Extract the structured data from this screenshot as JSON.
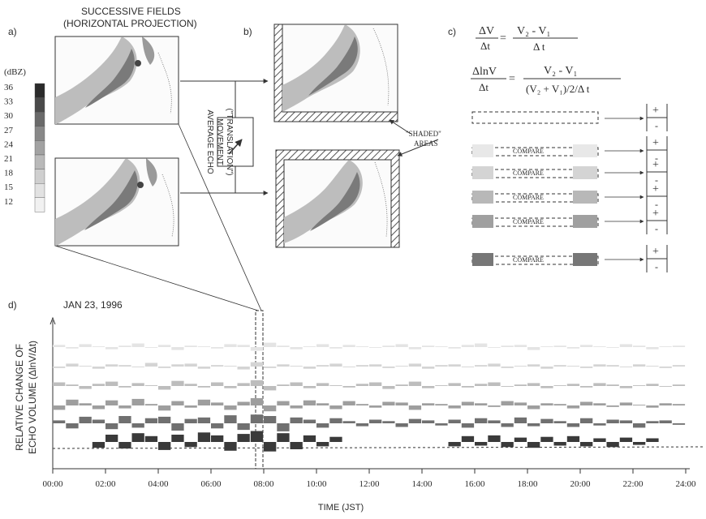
{
  "panel_a": {
    "label": "a)",
    "title_line1": "SUCCESSIVE FIELDS",
    "title_line2": "(HORIZONTAL PROJECTION)"
  },
  "colorbar": {
    "unit": "(dBZ)",
    "ticks": [
      "36",
      "33",
      "30",
      "27",
      "24",
      "21",
      "18",
      "15",
      "12"
    ],
    "colors": [
      "#2b2b2b",
      "#4a4a4a",
      "#6a6a6a",
      "#888888",
      "#a2a2a2",
      "#b9b9b9",
      "#cfcfcf",
      "#e2e2e2",
      "#f1f1f1"
    ]
  },
  "translation": {
    "line1": "AVERAGE ECHO",
    "line2": "MOVEMENT",
    "line3": "(\"TRANSLATION\")"
  },
  "panel_b": {
    "label": "b)",
    "shaded_line1": "\"SHADED\"",
    "shaded_line2": "AREAS"
  },
  "panel_c": {
    "label": "c)",
    "eq1_lhs_num": "ΔV",
    "eq1_lhs_den": "Δt",
    "eq1_rhs_num": "V₂ - V₁",
    "eq1_rhs_den": "Δ t",
    "eq2_lhs_num": "ΔlnV",
    "eq2_lhs_den": "Δt",
    "eq2_rhs_num": "V₂ - V₁",
    "eq2_rhs_den": "(V₂ + V₁)/2/Δ t",
    "compare_label": "COMPARE",
    "plus": "+",
    "minus": "-"
  },
  "panel_d": {
    "label": "d)",
    "date": "JAN 23, 1996",
    "ylabel_line1": "RELATIVE CHANGE OF",
    "ylabel_line2": "ECHO VOLUME  (ΔlnV/Δt)",
    "xlabel": "TIME (JST)",
    "x_ticks": [
      "00:00",
      "02:00",
      "04:00",
      "06:00",
      "08:00",
      "10:00",
      "12:00",
      "14:00",
      "16:00",
      "18:00",
      "20:00",
      "22:00",
      "24:00"
    ]
  },
  "chart_data": {
    "type": "bar",
    "x": [
      0,
      0.5,
      1,
      1.5,
      2,
      2.5,
      3,
      3.5,
      4,
      4.5,
      5,
      5.5,
      6,
      6.5,
      7,
      7.5,
      8,
      8.5,
      9,
      9.5,
      10,
      10.5,
      11,
      11.5,
      12,
      12.5,
      13,
      13.5,
      14,
      14.5,
      15,
      15.5,
      16,
      16.5,
      17,
      17.5,
      18,
      18.5,
      19,
      19.5,
      20,
      20.5,
      21,
      21.5,
      22,
      22.5,
      23,
      23.5
    ],
    "xlabel": "TIME (JST)",
    "ylabel": "RELATIVE CHANGE OF ECHO VOLUME  (ΔlnV/Δt)",
    "xlim": [
      0,
      24
    ],
    "series": [
      {
        "values": [
          0.3,
          -0.2,
          0.4,
          0.1,
          -0.3,
          0.2,
          0.5,
          -0.1,
          0.3,
          -0.4,
          0.2,
          0.1,
          -0.2,
          0.4,
          0.3,
          -0.5,
          0.6,
          0.2,
          -0.3,
          0.1,
          0.4,
          -0.2,
          0.3,
          0.1,
          -0.1,
          0.2,
          0.4,
          -0.3,
          0.2,
          0.1,
          -0.2,
          0.3,
          0.5,
          -0.1,
          0.2,
          0.3,
          -0.4,
          0.1,
          0.2,
          -0.2,
          0.3,
          0.1,
          -0.1,
          0.4,
          0.2,
          -0.3,
          0.1,
          0.2
        ]
      },
      {
        "values": [
          -0.2,
          0.4,
          0.1,
          -0.3,
          0.3,
          0.2,
          -0.1,
          0.5,
          -0.2,
          0.3,
          0.4,
          -0.3,
          0.2,
          0.1,
          -0.4,
          0.6,
          -0.2,
          0.3,
          0.1,
          -0.3,
          0.2,
          0.4,
          -0.1,
          0.2,
          0.3,
          -0.2,
          0.1,
          0.4,
          -0.3,
          0.2,
          0.3,
          -0.1,
          0.2,
          0.4,
          -0.2,
          0.1,
          0.3,
          -0.3,
          0.2,
          0.1,
          -0.2,
          0.3,
          0.2,
          -0.1,
          0.3,
          0.1,
          -0.2,
          0.2
        ]
      },
      {
        "values": [
          0.5,
          0.2,
          -0.4,
          0.3,
          0.6,
          -0.2,
          0.4,
          0.1,
          -0.5,
          0.7,
          0.3,
          -0.2,
          0.5,
          -0.3,
          0.4,
          0.8,
          -0.6,
          0.2,
          0.5,
          -0.3,
          0.4,
          0.1,
          -0.2,
          0.3,
          0.5,
          -0.4,
          0.2,
          0.6,
          -0.3,
          0.1,
          0.4,
          -0.2,
          0.3,
          0.5,
          -0.1,
          0.2,
          0.4,
          -0.3,
          0.1,
          0.3,
          -0.2,
          0.4,
          0.2,
          -0.3,
          0.1,
          0.3,
          -0.1,
          0.2
        ]
      },
      {
        "values": [
          -0.6,
          0.8,
          0.3,
          -0.5,
          0.7,
          -0.4,
          0.9,
          0.2,
          -0.7,
          0.6,
          -0.3,
          0.8,
          0.4,
          -0.6,
          0.5,
          1.0,
          -0.8,
          0.6,
          -0.4,
          0.7,
          0.3,
          -0.5,
          0.6,
          0.2,
          -0.3,
          0.5,
          0.4,
          -0.6,
          0.3,
          0.2,
          -0.4,
          0.5,
          0.3,
          -0.2,
          0.6,
          0.4,
          -0.5,
          0.3,
          0.2,
          -0.4,
          0.5,
          0.3,
          -0.2,
          0.4,
          0.1,
          -0.3,
          0.3,
          0.2
        ]
      },
      {
        "values": [
          0.4,
          -0.7,
          0.9,
          0.5,
          -0.8,
          1.0,
          -0.6,
          0.7,
          0.9,
          -1.0,
          0.6,
          0.8,
          -0.7,
          1.1,
          -0.9,
          1.2,
          1.0,
          -1.1,
          0.8,
          0.5,
          -0.6,
          0.7,
          0.3,
          -0.4,
          0.5,
          0.3,
          -0.5,
          0.6,
          0.4,
          -0.3,
          0.5,
          -0.6,
          0.7,
          0.4,
          -0.5,
          0.8,
          -0.4,
          0.6,
          0.3,
          -0.5,
          0.7,
          -0.3,
          0.5,
          0.4,
          -0.6,
          0.3,
          0.4,
          -0.2
        ]
      },
      {
        "values": [
          0,
          0,
          0,
          -0.8,
          1.0,
          -0.9,
          1.2,
          0.8,
          -1.1,
          1.0,
          -0.7,
          1.3,
          0.9,
          -1.2,
          1.1,
          1.5,
          -1.3,
          1.2,
          -1.0,
          0.9,
          -0.6,
          0.7,
          0,
          0,
          0,
          0,
          0,
          0,
          0,
          0,
          -0.6,
          0.8,
          -0.5,
          0.9,
          -0.7,
          0.6,
          -0.8,
          0.7,
          -0.5,
          0.8,
          -0.6,
          0.5,
          -0.7,
          0.6,
          -0.4,
          0.5,
          0,
          0
        ]
      }
    ],
    "colors": [
      "#e4e4e4",
      "#d4d4d4",
      "#bdbdbd",
      "#9e9e9e",
      "#707070",
      "#3a3a3a"
    ]
  }
}
